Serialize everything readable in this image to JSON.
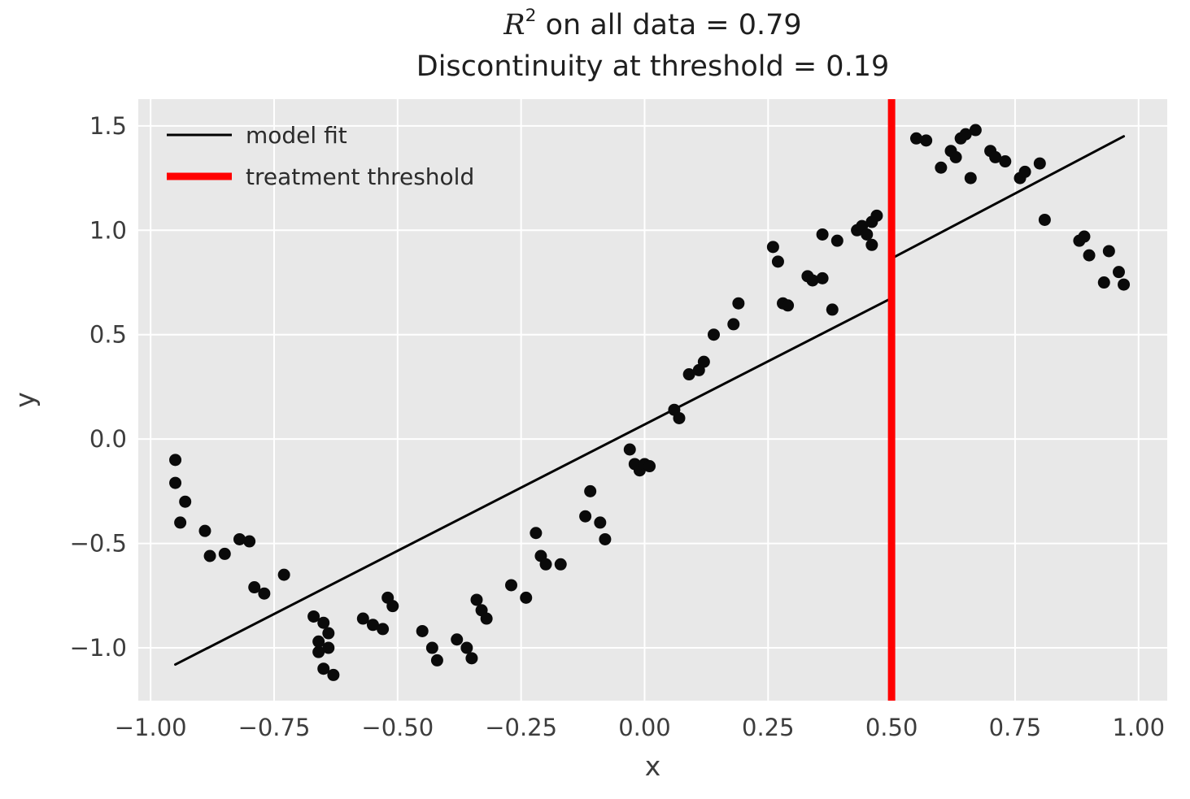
{
  "chart_data": {
    "type": "scatter",
    "title": {
      "math_var": "R",
      "exponent": "2",
      "line1_rest": " on all data = 0.79",
      "line2": "Discontinuity at threshold = 0.19"
    },
    "r_squared": 0.79,
    "discontinuity": 0.19,
    "xlabel": "x",
    "ylabel": "y",
    "xlim": [
      -1.025,
      1.058
    ],
    "ylim": [
      -1.253,
      1.628
    ],
    "xticks": [
      -1.0,
      -0.75,
      -0.5,
      -0.25,
      0.0,
      0.25,
      0.5,
      0.75,
      1.0
    ],
    "xtick_labels": [
      "−1.00",
      "−0.75",
      "−0.50",
      "−0.25",
      "0.00",
      "0.25",
      "0.50",
      "0.75",
      "1.00"
    ],
    "yticks": [
      -1.0,
      -0.5,
      0.0,
      0.5,
      1.0,
      1.5
    ],
    "ytick_labels": [
      "−1.0",
      "−0.5",
      "0.0",
      "0.5",
      "1.0",
      "1.5"
    ],
    "grid": true,
    "style": {
      "plot_bg": "#e8e8e8",
      "grid_color": "#ffffff",
      "tick_color": "#3d3d3d",
      "point_color": "#0a0a0a",
      "fit_color": "#000000",
      "threshold_color": "#ff0000"
    },
    "legend": {
      "position": "upper-left",
      "entries": [
        {
          "label": "model fit",
          "color": "#000000",
          "linewidth": 3
        },
        {
          "label": "treatment threshold",
          "color": "#ff0000",
          "linewidth": 9
        }
      ]
    },
    "threshold": {
      "x": 0.5,
      "color": "#ff0000",
      "linewidth": 9
    },
    "model_fit": {
      "color": "#000000",
      "linewidth": 3,
      "segments": [
        {
          "x1": -0.95,
          "y1": -1.08,
          "x2": 0.5,
          "y2": 0.675
        },
        {
          "x1": 0.5,
          "y1": 0.865,
          "x2": 0.97,
          "y2": 1.45
        }
      ]
    },
    "points": [
      [
        -0.95,
        -0.1
      ],
      [
        -0.95,
        -0.21
      ],
      [
        -0.94,
        -0.4
      ],
      [
        -0.93,
        -0.3
      ],
      [
        -0.89,
        -0.44
      ],
      [
        -0.88,
        -0.56
      ],
      [
        -0.85,
        -0.55
      ],
      [
        -0.82,
        -0.48
      ],
      [
        -0.8,
        -0.49
      ],
      [
        -0.79,
        -0.71
      ],
      [
        -0.77,
        -0.74
      ],
      [
        -0.73,
        -0.65
      ],
      [
        -0.67,
        -0.85
      ],
      [
        -0.66,
        -0.97
      ],
      [
        -0.66,
        -1.02
      ],
      [
        -0.65,
        -0.88
      ],
      [
        -0.65,
        -1.1
      ],
      [
        -0.64,
        -0.93
      ],
      [
        -0.64,
        -1.0
      ],
      [
        -0.63,
        -1.13
      ],
      [
        -0.57,
        -0.86
      ],
      [
        -0.55,
        -0.89
      ],
      [
        -0.53,
        -0.91
      ],
      [
        -0.52,
        -0.76
      ],
      [
        -0.51,
        -0.8
      ],
      [
        -0.45,
        -0.92
      ],
      [
        -0.43,
        -1.0
      ],
      [
        -0.42,
        -1.06
      ],
      [
        -0.38,
        -0.96
      ],
      [
        -0.36,
        -1.0
      ],
      [
        -0.35,
        -1.05
      ],
      [
        -0.34,
        -0.77
      ],
      [
        -0.33,
        -0.82
      ],
      [
        -0.32,
        -0.86
      ],
      [
        -0.27,
        -0.7
      ],
      [
        -0.24,
        -0.76
      ],
      [
        -0.22,
        -0.45
      ],
      [
        -0.21,
        -0.56
      ],
      [
        -0.2,
        -0.6
      ],
      [
        -0.17,
        -0.6
      ],
      [
        -0.12,
        -0.37
      ],
      [
        -0.11,
        -0.25
      ],
      [
        -0.09,
        -0.4
      ],
      [
        -0.08,
        -0.48
      ],
      [
        -0.03,
        -0.05
      ],
      [
        -0.02,
        -0.12
      ],
      [
        -0.01,
        -0.15
      ],
      [
        0.0,
        -0.12
      ],
      [
        0.01,
        -0.13
      ],
      [
        0.06,
        0.14
      ],
      [
        0.07,
        0.1
      ],
      [
        0.09,
        0.31
      ],
      [
        0.11,
        0.33
      ],
      [
        0.12,
        0.37
      ],
      [
        0.14,
        0.5
      ],
      [
        0.18,
        0.55
      ],
      [
        0.19,
        0.65
      ],
      [
        0.26,
        0.92
      ],
      [
        0.27,
        0.85
      ],
      [
        0.28,
        0.65
      ],
      [
        0.29,
        0.64
      ],
      [
        0.33,
        0.78
      ],
      [
        0.34,
        0.76
      ],
      [
        0.36,
        0.98
      ],
      [
        0.36,
        0.77
      ],
      [
        0.38,
        0.62
      ],
      [
        0.39,
        0.95
      ],
      [
        0.43,
        1.0
      ],
      [
        0.44,
        1.02
      ],
      [
        0.45,
        0.98
      ],
      [
        0.46,
        1.04
      ],
      [
        0.46,
        0.93
      ],
      [
        0.47,
        1.07
      ],
      [
        0.55,
        1.44
      ],
      [
        0.57,
        1.43
      ],
      [
        0.6,
        1.3
      ],
      [
        0.62,
        1.38
      ],
      [
        0.63,
        1.35
      ],
      [
        0.64,
        1.44
      ],
      [
        0.65,
        1.46
      ],
      [
        0.66,
        1.25
      ],
      [
        0.67,
        1.48
      ],
      [
        0.7,
        1.38
      ],
      [
        0.71,
        1.35
      ],
      [
        0.73,
        1.33
      ],
      [
        0.76,
        1.25
      ],
      [
        0.77,
        1.28
      ],
      [
        0.8,
        1.32
      ],
      [
        0.81,
        1.05
      ],
      [
        0.88,
        0.95
      ],
      [
        0.89,
        0.97
      ],
      [
        0.9,
        0.88
      ],
      [
        0.93,
        0.75
      ],
      [
        0.94,
        0.9
      ],
      [
        0.96,
        0.8
      ],
      [
        0.97,
        0.74
      ]
    ]
  }
}
